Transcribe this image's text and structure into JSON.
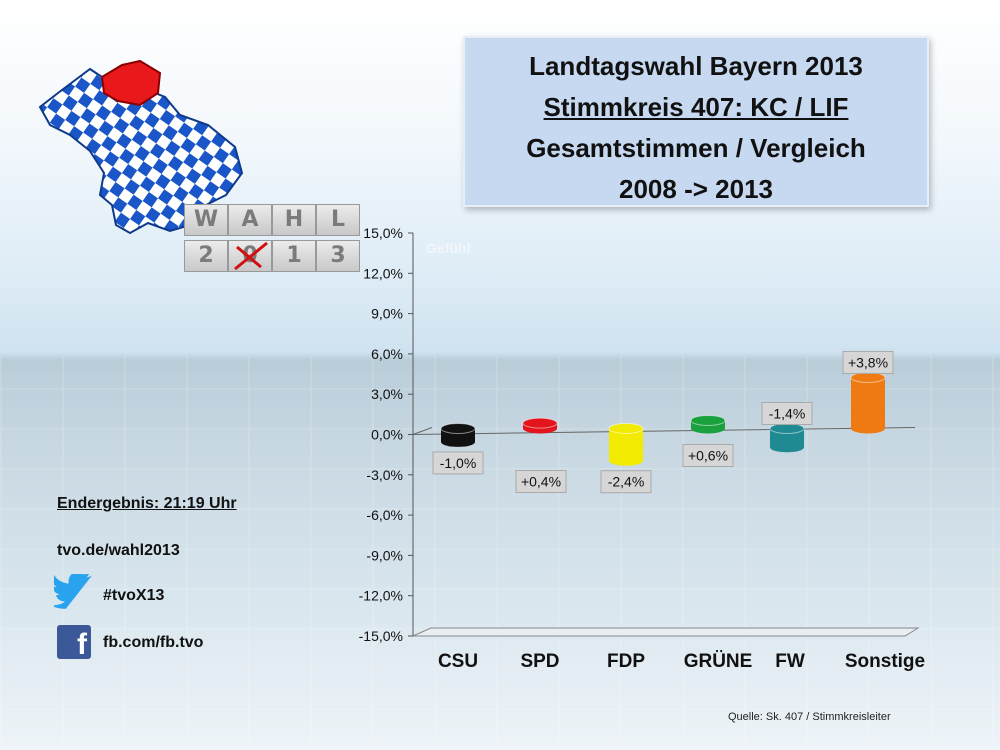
{
  "title": {
    "line1": "Landtagswahl Bayern 2013",
    "line2": "Stimmkreis 407: KC / LIF",
    "line3": "Gesamtstimmen / Vergleich",
    "line4": "2008 -> 2013"
  },
  "logo": {
    "letters_top": [
      "W",
      "A",
      "H",
      "L"
    ],
    "letters_bottom": [
      "2",
      "0",
      "1",
      "3"
    ]
  },
  "sidebar": {
    "result": "Endergebnis: 21:19 Uhr",
    "website": "tvo.de/wahl2013",
    "twitter": "#tvoX13",
    "facebook": "fb.com/fb.tvo"
  },
  "source": "Quelle: Sk. 407 / Stimmkreisleiter",
  "ghost_text": "Gefühl",
  "colors": {
    "CSU": "#111111",
    "SPD": "#e3141b",
    "FDP": "#f2ea00",
    "GRÜNE": "#1aa03c",
    "FW": "#1f8a92",
    "Sonstige": "#f07a12"
  },
  "chart_data": {
    "type": "bar",
    "categories": [
      "CSU",
      "SPD",
      "FDP",
      "GRÜNE",
      "FW",
      "Sonstige"
    ],
    "values": [
      -1.0,
      0.4,
      -2.4,
      0.6,
      -1.4,
      3.8
    ],
    "data_labels": [
      "-1,0%",
      "+0,4%",
      "-2,4%",
      "+0,6%",
      "-1,4%",
      "+3,8%"
    ],
    "y_ticks": [
      "15,0%",
      "12,0%",
      "9,0%",
      "6,0%",
      "3,0%",
      "0,0%",
      "-3,0%",
      "-6,0%",
      "-9,0%",
      "-12,0%",
      "-15,0%"
    ],
    "ylim": [
      -15,
      15
    ],
    "grid": false,
    "legend": "none"
  }
}
